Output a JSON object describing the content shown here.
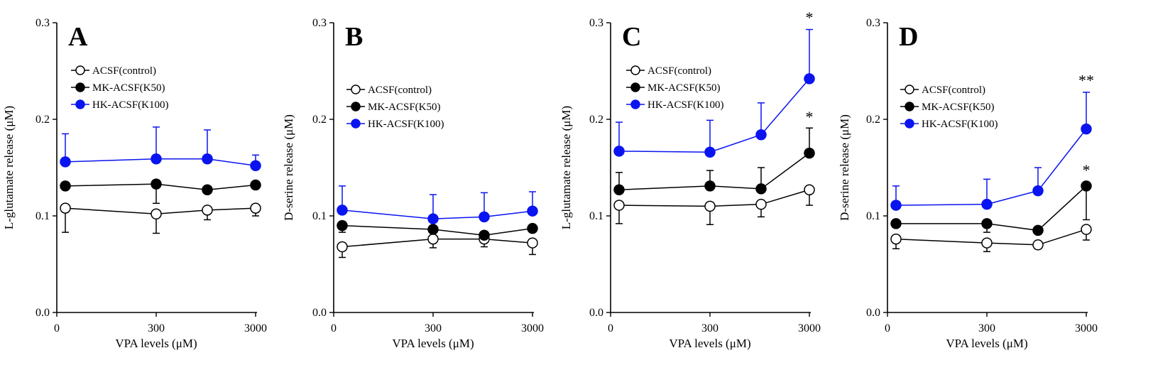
{
  "chart_data": [
    {
      "type": "line",
      "panel": "A",
      "ylabel": "L-glutamate release (μM)",
      "xlabel": "VPA levels (μM)",
      "ylim": [
        0,
        0.3
      ],
      "yticks": [
        "0.0",
        "0.1",
        "0.2",
        "0.3"
      ],
      "xticks": [
        "0",
        "300",
        "3000"
      ],
      "series": [
        {
          "name": "ACSF(control)",
          "color": "#000000",
          "fill": "#ffffff",
          "values": [
            0.108,
            0.102,
            0.106,
            0.108
          ],
          "err_lower": [
            0.025,
            0.02,
            0.01,
            0.008
          ],
          "err_upper": [
            0,
            0,
            0,
            0
          ]
        },
        {
          "name": "MK-ACSF(K50)",
          "color": "#000000",
          "fill": "#000000",
          "values": [
            0.131,
            0.133,
            0.127,
            0.132
          ],
          "err_lower": [
            0,
            0.02,
            0,
            0
          ],
          "err_upper": [
            0,
            0,
            0,
            0
          ]
        },
        {
          "name": "HK-ACSF(K100)",
          "color": "#0a14f0",
          "fill": "#0a14f0",
          "values": [
            0.156,
            0.159,
            0.159,
            0.152
          ],
          "err_lower": [
            0,
            0,
            0,
            0
          ],
          "err_upper": [
            0.029,
            0.033,
            0.03,
            0.011
          ]
        }
      ],
      "annotations": []
    },
    {
      "type": "line",
      "panel": "B",
      "ylabel": "D-serine release (μM)",
      "xlabel": "VPA levels (μM)",
      "ylim": [
        0,
        0.3
      ],
      "yticks": [
        "0.0",
        "0.1",
        "0.2",
        "0.3"
      ],
      "xticks": [
        "0",
        "300",
        "3000"
      ],
      "series": [
        {
          "name": "ACSF(control)",
          "color": "#000000",
          "fill": "#ffffff",
          "values": [
            0.068,
            0.076,
            0.076,
            0.072
          ],
          "err_lower": [
            0.011,
            0.009,
            0.008,
            0.012
          ],
          "err_upper": [
            0,
            0,
            0,
            0
          ]
        },
        {
          "name": "MK-ACSF(K50)",
          "color": "#000000",
          "fill": "#000000",
          "values": [
            0.09,
            0.086,
            0.08,
            0.087
          ],
          "err_lower": [
            0.007,
            0,
            0,
            0
          ],
          "err_upper": [
            0,
            0,
            0,
            0
          ]
        },
        {
          "name": "HK-ACSF(K100)",
          "color": "#0a14f0",
          "fill": "#0a14f0",
          "values": [
            0.106,
            0.097,
            0.099,
            0.105
          ],
          "err_lower": [
            0,
            0,
            0,
            0
          ],
          "err_upper": [
            0.025,
            0.025,
            0.025,
            0.02
          ]
        }
      ],
      "annotations": []
    },
    {
      "type": "line",
      "panel": "C",
      "ylabel": "L-glutamate release (μM)",
      "xlabel": "VPA levels (μM)",
      "ylim": [
        0,
        0.3
      ],
      "yticks": [
        "0.0",
        "0.1",
        "0.2",
        "0.3"
      ],
      "xticks": [
        "0",
        "300",
        "3000"
      ],
      "series": [
        {
          "name": "ACSF(control)",
          "color": "#000000",
          "fill": "#ffffff",
          "values": [
            0.111,
            0.11,
            0.112,
            0.127
          ],
          "err_lower": [
            0.019,
            0.019,
            0.013,
            0.016
          ],
          "err_upper": [
            0,
            0,
            0,
            0
          ]
        },
        {
          "name": "MK-ACSF(K50)",
          "color": "#000000",
          "fill": "#000000",
          "values": [
            0.127,
            0.131,
            0.128,
            0.165
          ],
          "err_lower": [
            0,
            0,
            0,
            0
          ],
          "err_upper": [
            0.018,
            0.016,
            0.022,
            0.026
          ]
        },
        {
          "name": "HK-ACSF(K100)",
          "color": "#0a14f0",
          "fill": "#0a14f0",
          "values": [
            0.167,
            0.166,
            0.184,
            0.242
          ],
          "err_lower": [
            0,
            0,
            0,
            0
          ],
          "err_upper": [
            0.03,
            0.033,
            0.033,
            0.051
          ]
        }
      ],
      "annotations": [
        {
          "text": "*",
          "x_index": 3,
          "y": 0.3
        },
        {
          "text": "*",
          "x_index": 3,
          "y": 0.197
        }
      ]
    },
    {
      "type": "line",
      "panel": "D",
      "ylabel": "D-serine release (μM)",
      "xlabel": "VPA levels (μM)",
      "ylim": [
        0,
        0.3
      ],
      "yticks": [
        "0.0",
        "0.1",
        "0.2",
        "0.3"
      ],
      "xticks": [
        "0",
        "300",
        "3000"
      ],
      "series": [
        {
          "name": "ACSF(control)",
          "color": "#000000",
          "fill": "#ffffff",
          "values": [
            0.076,
            0.072,
            0.07,
            0.086
          ],
          "err_lower": [
            0.01,
            0.009,
            0,
            0.011
          ],
          "err_upper": [
            0,
            0,
            0,
            0
          ]
        },
        {
          "name": "MK-ACSF(K50)",
          "color": "#000000",
          "fill": "#000000",
          "values": [
            0.092,
            0.092,
            0.085,
            0.131
          ],
          "err_lower": [
            0,
            0.009,
            0,
            0.035
          ],
          "err_upper": [
            0,
            0,
            0,
            0
          ]
        },
        {
          "name": "HK-ACSF(K100)",
          "color": "#0a14f0",
          "fill": "#0a14f0",
          "values": [
            0.111,
            0.112,
            0.126,
            0.19
          ],
          "err_lower": [
            0,
            0,
            0,
            0
          ],
          "err_upper": [
            0.02,
            0.026,
            0.024,
            0.038
          ]
        }
      ],
      "annotations": [
        {
          "text": "**",
          "x_index": 3,
          "y": 0.235
        },
        {
          "text": "*",
          "x_index": 3,
          "y": 0.142
        }
      ]
    }
  ]
}
